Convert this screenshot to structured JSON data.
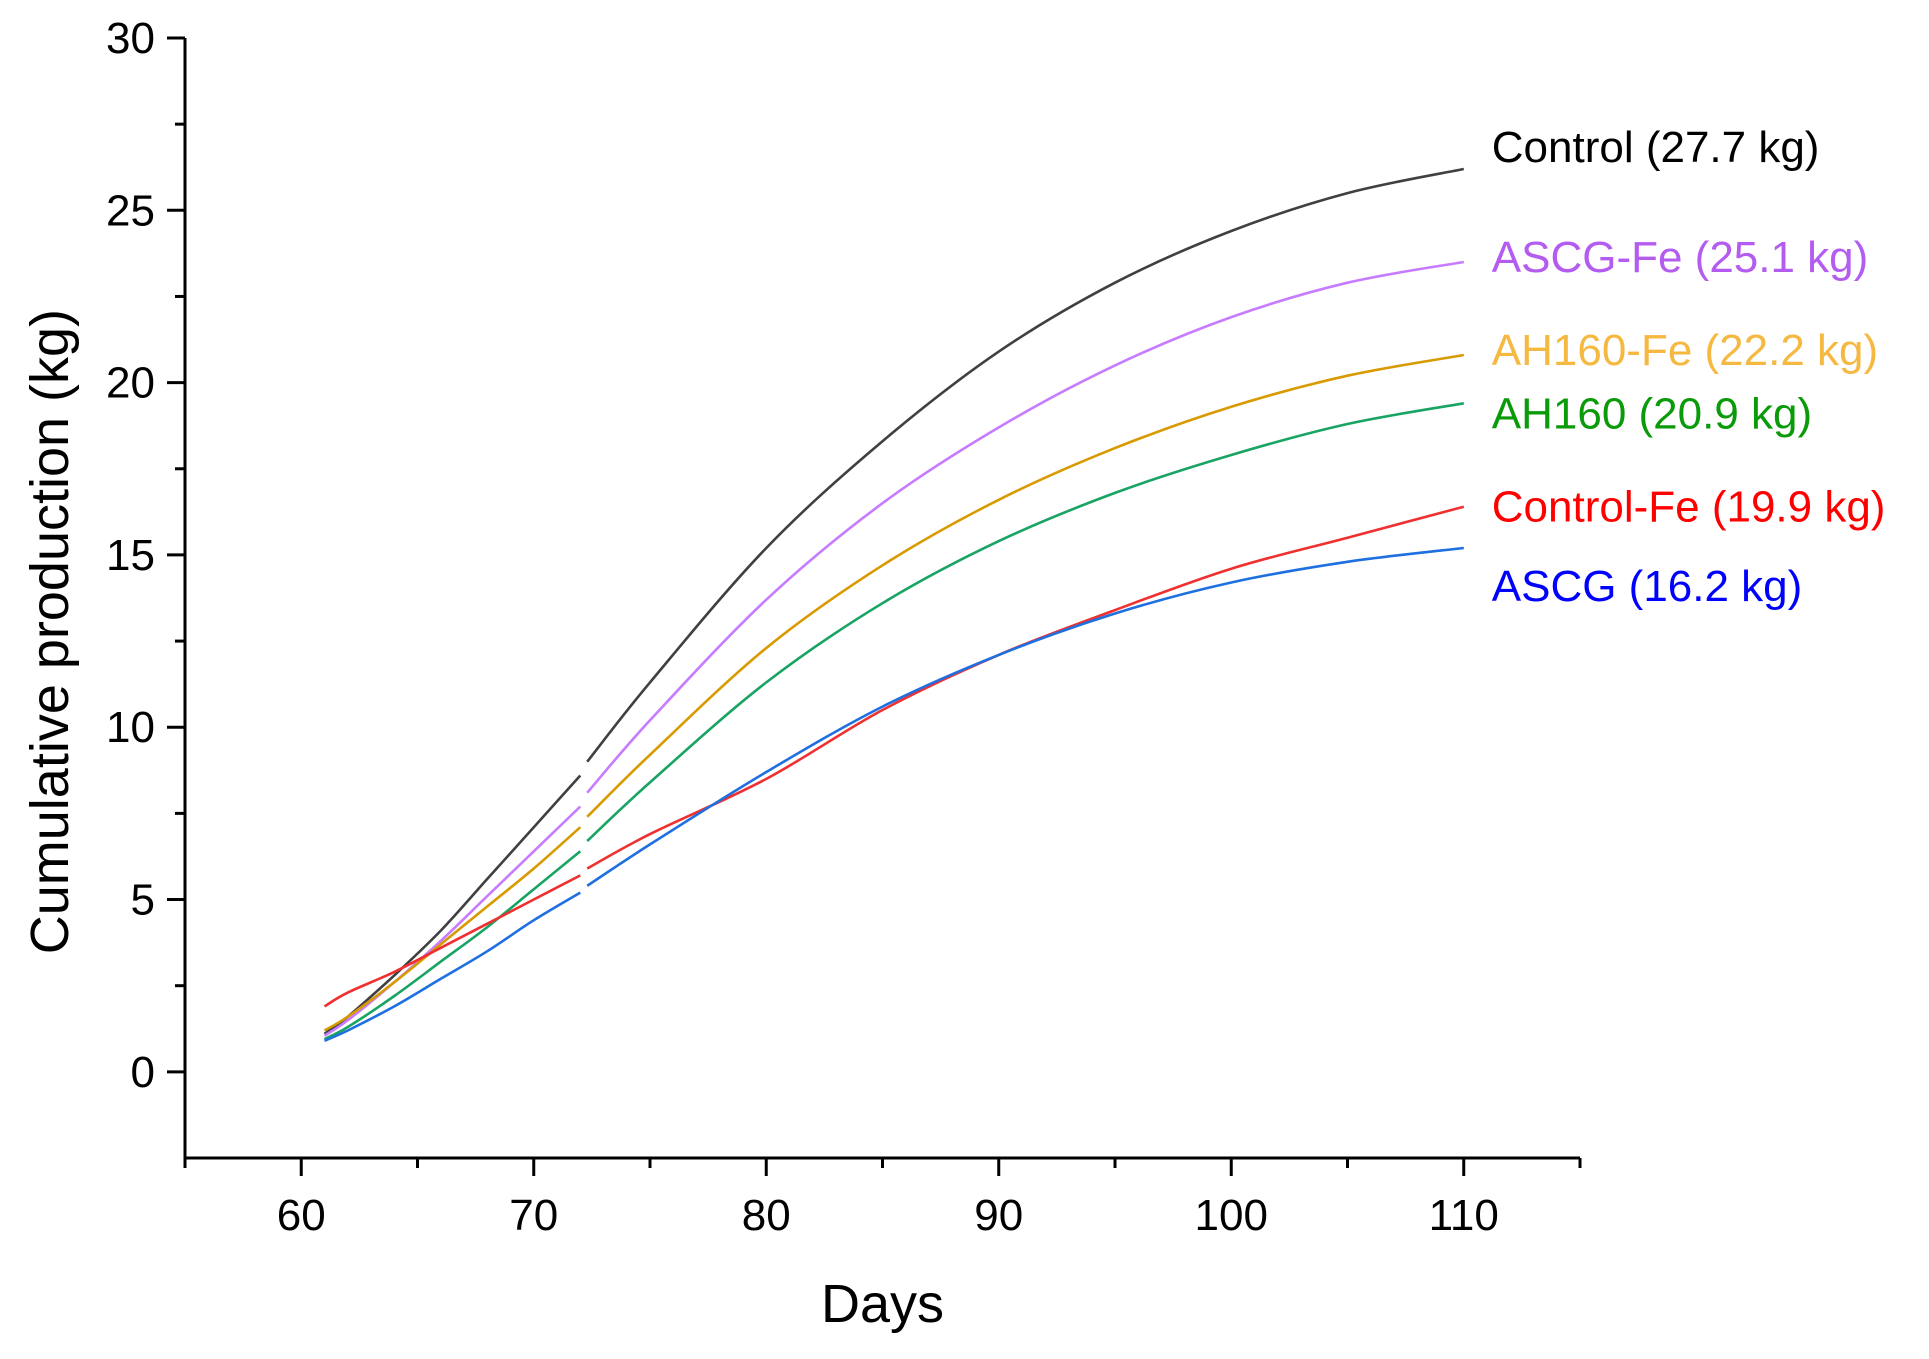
{
  "chart_data": {
    "type": "line",
    "title": "",
    "xlabel": "Days",
    "ylabel": "Cumulative production (kg)",
    "xlim": [
      55,
      115
    ],
    "ylim": [
      -2.5,
      30
    ],
    "xticks": [
      60,
      70,
      80,
      90,
      100,
      110
    ],
    "xtick_labels": [
      "60",
      "70",
      "80",
      "90",
      "100",
      "110"
    ],
    "yticks": [
      0,
      5,
      10,
      15,
      20,
      25,
      30
    ],
    "ytick_labels": [
      "0",
      "5",
      "10",
      "15",
      "20",
      "25",
      "30"
    ],
    "grid": false,
    "series": [
      {
        "name": "Control",
        "label": "Control (27.7 kg)",
        "line_color": "#404040",
        "label_color": "#000000",
        "segments": [
          {
            "x": [
              61,
              62,
              64,
              66,
              68,
              70,
              72
            ],
            "y": [
              1.1,
              1.6,
              2.8,
              4.1,
              5.6,
              7.1,
              8.6
            ]
          },
          {
            "x": [
              72.3,
              75,
              80,
              85,
              90,
              95,
              100,
              105,
              110
            ],
            "y": [
              9.0,
              11.3,
              15.2,
              18.3,
              20.9,
              22.9,
              24.4,
              25.5,
              26.2
            ]
          }
        ]
      },
      {
        "name": "ASCG-Fe",
        "label": "ASCG-Fe (25.1 kg)",
        "line_color": "#C77CFF",
        "label_color": "#B45BF0",
        "segments": [
          {
            "x": [
              61,
              62,
              64,
              66,
              68,
              70,
              72
            ],
            "y": [
              1.05,
              1.5,
              2.6,
              3.8,
              5.1,
              6.4,
              7.7
            ]
          },
          {
            "x": [
              72.3,
              75,
              80,
              85,
              90,
              95,
              100,
              105,
              110
            ],
            "y": [
              8.1,
              10.2,
              13.7,
              16.5,
              18.7,
              20.5,
              21.9,
              22.9,
              23.5
            ]
          }
        ]
      },
      {
        "name": "AH160-Fe",
        "label": "AH160-Fe (22.2 kg)",
        "line_color": "#D99A00",
        "label_color": "#F5B942",
        "segments": [
          {
            "x": [
              61,
              62,
              64,
              66,
              68,
              70,
              72
            ],
            "y": [
              1.2,
              1.6,
              2.6,
              3.7,
              4.8,
              5.9,
              7.1
            ]
          },
          {
            "x": [
              72.3,
              75,
              80,
              85,
              90,
              95,
              100,
              105,
              110
            ],
            "y": [
              7.4,
              9.2,
              12.3,
              14.7,
              16.6,
              18.1,
              19.3,
              20.2,
              20.8
            ]
          }
        ]
      },
      {
        "name": "AH160",
        "label": "AH160 (20.9 kg)",
        "line_color": "#19A463",
        "label_color": "#0A9A0A",
        "segments": [
          {
            "x": [
              61,
              62,
              64,
              66,
              68,
              70,
              72
            ],
            "y": [
              0.95,
              1.3,
              2.2,
              3.2,
              4.2,
              5.3,
              6.4
            ]
          },
          {
            "x": [
              72.3,
              75,
              80,
              85,
              90,
              95,
              100,
              105,
              110
            ],
            "y": [
              6.7,
              8.4,
              11.3,
              13.6,
              15.4,
              16.8,
              17.9,
              18.8,
              19.4
            ]
          }
        ]
      },
      {
        "name": "Control-Fe",
        "label": "Control-Fe (19.9 kg)",
        "line_color": "#F03030",
        "label_color": "#FF0000",
        "segments": [
          {
            "x": [
              61,
              62,
              64,
              66,
              68,
              70,
              72
            ],
            "y": [
              1.9,
              2.3,
              2.9,
              3.6,
              4.3,
              5.0,
              5.7
            ]
          },
          {
            "x": [
              72.3,
              75,
              80,
              85,
              90,
              95,
              100,
              105,
              110
            ],
            "y": [
              5.9,
              6.9,
              8.5,
              10.5,
              12.1,
              13.4,
              14.6,
              15.5,
              16.4
            ]
          }
        ]
      },
      {
        "name": "ASCG",
        "label": "ASCG (16.2 kg)",
        "line_color": "#1E6FE0",
        "label_color": "#0000FF",
        "segments": [
          {
            "x": [
              61,
              62,
              64,
              66,
              68,
              70,
              72
            ],
            "y": [
              0.9,
              1.2,
              1.9,
              2.7,
              3.5,
              4.4,
              5.2
            ]
          },
          {
            "x": [
              72.3,
              75,
              80,
              85,
              90,
              95,
              100,
              105,
              110
            ],
            "y": [
              5.4,
              6.6,
              8.7,
              10.6,
              12.1,
              13.3,
              14.2,
              14.8,
              15.2
            ]
          }
        ]
      }
    ]
  }
}
